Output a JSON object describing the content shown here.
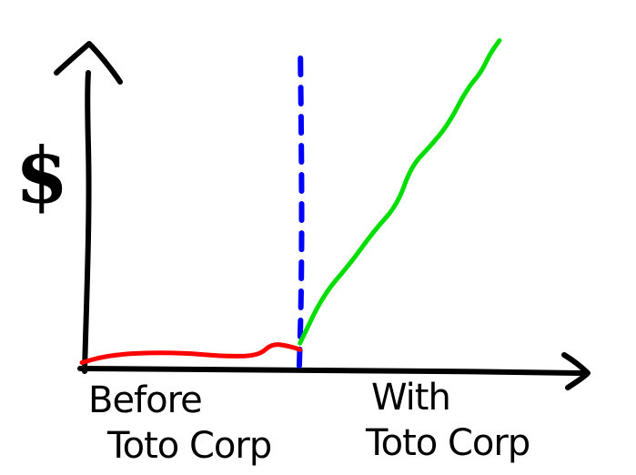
{
  "chart_data": {
    "type": "line",
    "title": "",
    "xlabel": "",
    "ylabel": "$",
    "grid": false,
    "legend": "none",
    "regions": [
      {
        "label_line1": "Before",
        "label_line2": "Toto Corp"
      },
      {
        "label_line1": "With",
        "label_line2": "Toto Corp"
      }
    ],
    "xlim": [
      0,
      100
    ],
    "ylim": [
      0,
      100
    ],
    "divider_x": 47,
    "series": [
      {
        "color": "#ff0000",
        "points": [
          [
            0,
            1
          ],
          [
            5,
            3
          ],
          [
            12,
            4
          ],
          [
            22,
            4
          ],
          [
            30,
            3
          ],
          [
            38,
            3
          ],
          [
            41,
            7
          ],
          [
            45,
            6
          ],
          [
            47,
            5
          ]
        ]
      },
      {
        "color": "#00dd00",
        "points": [
          [
            47,
            7
          ],
          [
            52,
            22
          ],
          [
            58,
            32
          ],
          [
            63,
            42
          ],
          [
            68,
            50
          ],
          [
            71,
            62
          ],
          [
            75,
            68
          ],
          [
            79,
            75
          ],
          [
            83,
            86
          ],
          [
            86,
            91
          ],
          [
            88,
            97
          ],
          [
            90,
            101
          ]
        ]
      }
    ],
    "colors": {
      "axis": "#000000",
      "divider": "#0000ff",
      "before": "#ff0000",
      "after": "#00dd00"
    }
  }
}
